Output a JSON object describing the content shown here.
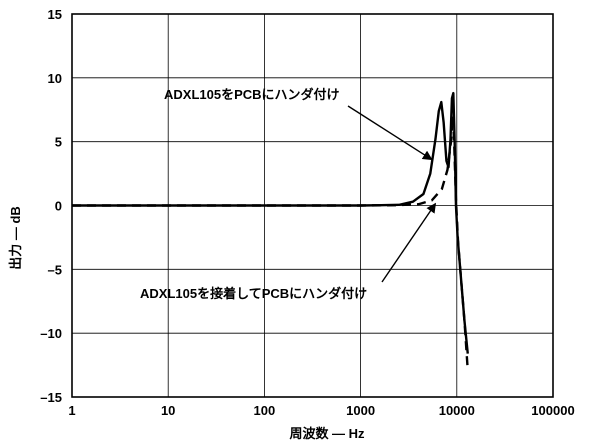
{
  "chart_data": {
    "type": "line",
    "xlabel": "周波数 — Hz",
    "ylabel": "出力 — dB",
    "xscale": "log",
    "xlim": [
      1,
      100000
    ],
    "ylim": [
      -15,
      15
    ],
    "x_ticks": [
      1,
      10,
      100,
      1000,
      10000,
      100000
    ],
    "x_tick_labels": [
      "1",
      "10",
      "100",
      "1000",
      "10000",
      "100000"
    ],
    "y_ticks": [
      15,
      10,
      5,
      0,
      -5,
      -10,
      -15
    ],
    "y_tick_labels": [
      "15",
      "10",
      "5",
      "0",
      "–5",
      "–10",
      "–15"
    ],
    "grid": true,
    "series": [
      {
        "name": "ADXL105をPCBにハンダ付け",
        "style": "solid",
        "color": "#000000",
        "points": [
          [
            1,
            0
          ],
          [
            100,
            0
          ],
          [
            1000,
            0
          ],
          [
            2500,
            0.05
          ],
          [
            3500,
            0.3
          ],
          [
            4500,
            0.9
          ],
          [
            5300,
            2.5
          ],
          [
            6000,
            5.2
          ],
          [
            6500,
            7.4
          ],
          [
            6900,
            8.1
          ],
          [
            7300,
            6.5
          ],
          [
            7800,
            3.5
          ],
          [
            8200,
            3.0
          ],
          [
            8600,
            5.2
          ],
          [
            8900,
            8.4
          ],
          [
            9200,
            8.8
          ],
          [
            9500,
            5.0
          ],
          [
            9800,
            0.0
          ],
          [
            10200,
            -2.5
          ],
          [
            11000,
            -5.5
          ],
          [
            12000,
            -9.0
          ],
          [
            13000,
            -11.6
          ]
        ]
      },
      {
        "name": "ADXL105を接着してPCBにハンダ付け",
        "style": "dashed",
        "color": "#000000",
        "points": [
          [
            1,
            0
          ],
          [
            100,
            0
          ],
          [
            1000,
            0
          ],
          [
            2500,
            0.03
          ],
          [
            4000,
            0.1
          ],
          [
            5500,
            0.4
          ],
          [
            7000,
            1.3
          ],
          [
            8000,
            2.8
          ],
          [
            8700,
            5.0
          ],
          [
            9100,
            7.0
          ],
          [
            9400,
            4.8
          ],
          [
            9800,
            0.5
          ],
          [
            10300,
            -2.8
          ],
          [
            11000,
            -5.5
          ],
          [
            12000,
            -9.0
          ],
          [
            13000,
            -12.9
          ]
        ]
      }
    ],
    "annotations": [
      {
        "text": "ADXL105をPCBにハンダ付け",
        "target_series": 0
      },
      {
        "text": "ADXL105を接着してPCBにハンダ付け",
        "target_series": 1
      }
    ]
  }
}
